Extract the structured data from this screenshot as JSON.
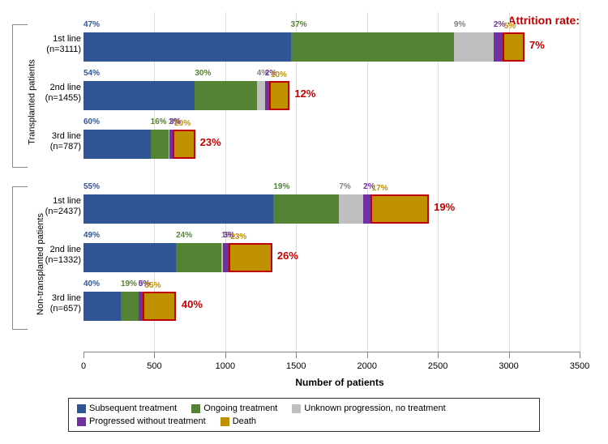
{
  "chart": {
    "x_max": 3500,
    "x_tick_step": 500,
    "x_axis_label": "Number of patients",
    "attrition_title": "Attrition rate:",
    "colors": {
      "subsequent": "#2f5597",
      "ongoing": "#548235",
      "unknown": "#bfbfbf",
      "progressed": "#7030a0",
      "death": "#bf9000",
      "attrition": "#c00000"
    },
    "groups": [
      {
        "label": "Transplanted patients",
        "rows": [
          {
            "line": "1st line",
            "n": "(n=3111)",
            "segs": [
              47,
              37,
              9,
              2,
              5
            ],
            "attrition": "7%"
          },
          {
            "line": "2nd line",
            "n": "(n=1455)",
            "segs": [
              54,
              30,
              4,
              2,
              10
            ],
            "attrition": "12%"
          },
          {
            "line": "3rd line",
            "n": "(n=787)",
            "segs": [
              60,
              16,
              1,
              3,
              20
            ],
            "attrition": "23%"
          }
        ],
        "totals": [
          3111,
          1455,
          787
        ]
      },
      {
        "label": "Non-transplanted patients",
        "rows": [
          {
            "line": "1st line",
            "n": "(n=2437)",
            "segs": [
              55,
              19,
              7,
              2,
              17
            ],
            "attrition": "19%"
          },
          {
            "line": "2nd line",
            "n": "(n=1332)",
            "segs": [
              49,
              24,
              1,
              3,
              23
            ],
            "attrition": "26%"
          },
          {
            "line": "3rd line",
            "n": "(n=657)",
            "segs": [
              40,
              19,
              0,
              5,
              35
            ],
            "attrition": "40%"
          }
        ],
        "totals": [
          2437,
          1332,
          657
        ]
      }
    ],
    "legend": [
      {
        "label": "Subsequent treatment",
        "color": "#2f5597"
      },
      {
        "label": "Ongoing treatment",
        "color": "#548235"
      },
      {
        "label": "Unknown progression, no treatment",
        "color": "#bfbfbf"
      },
      {
        "label": "Progressed without treatment",
        "color": "#7030a0"
      },
      {
        "label": "Death",
        "color": "#bf9000"
      }
    ]
  }
}
